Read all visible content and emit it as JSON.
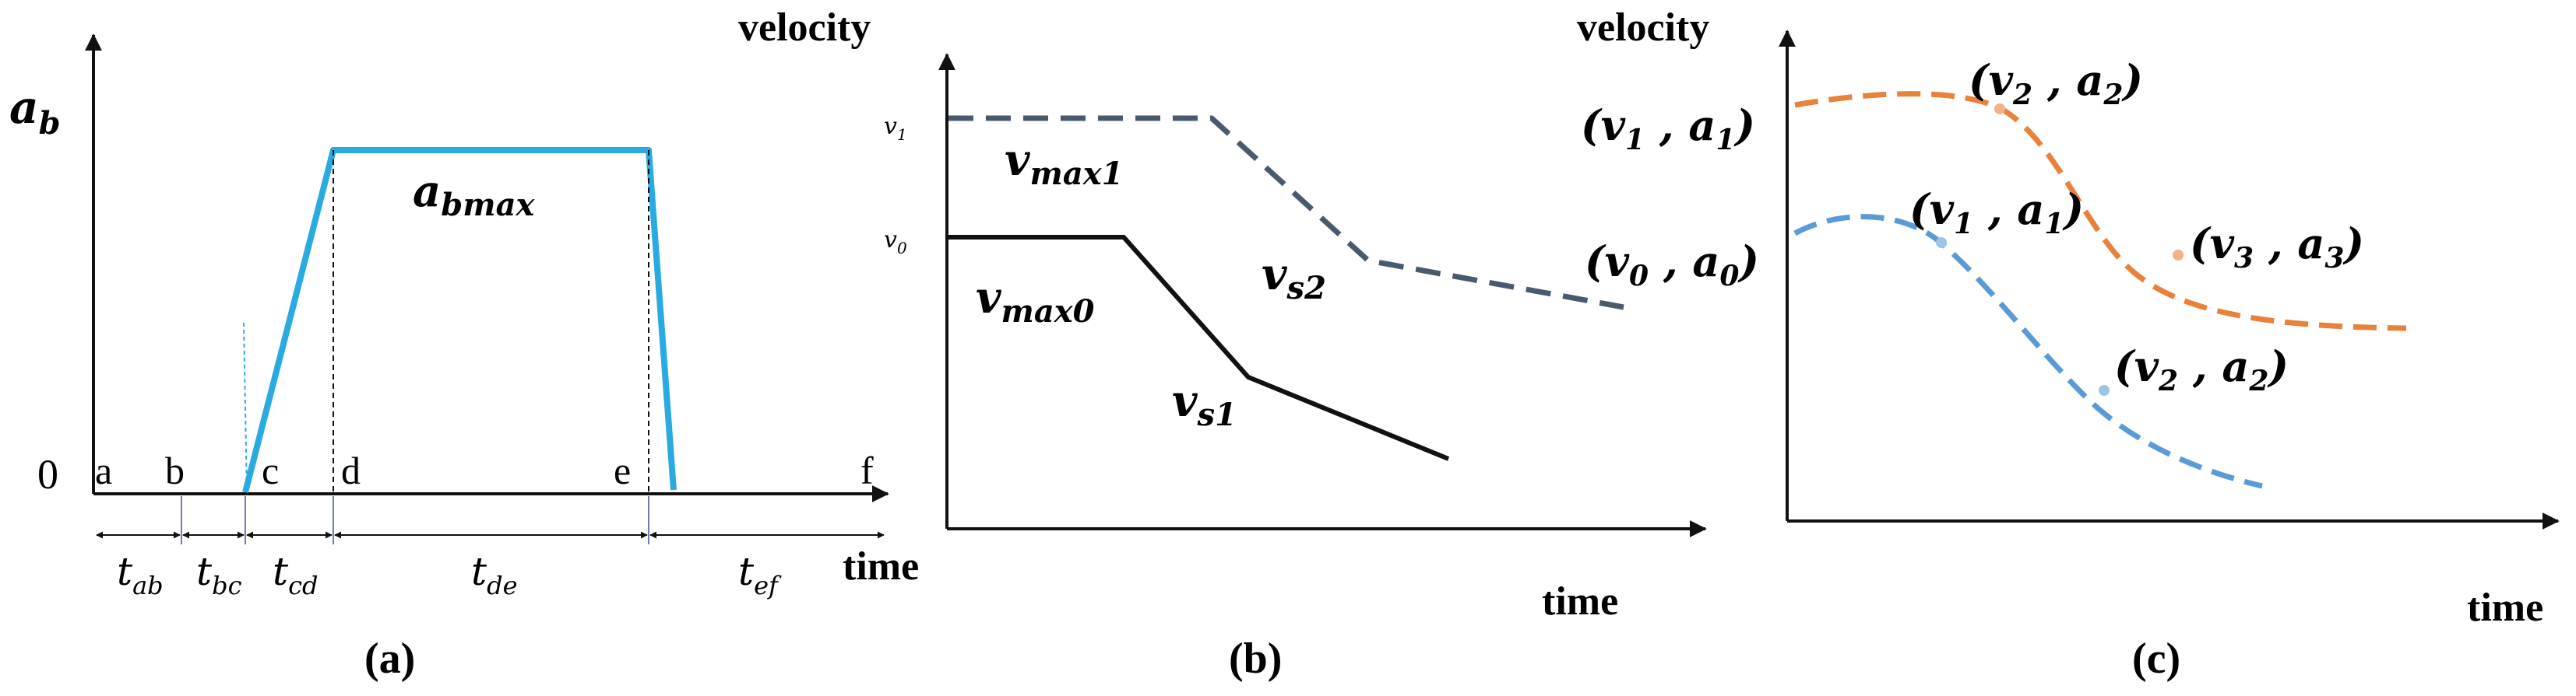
{
  "colors": {
    "axis": "#111111",
    "blue": "#29abe2",
    "slate": "#4a5a6e",
    "black": "#111111",
    "orange": "#e8823a",
    "lightblue": "#5b9bd5",
    "pointer": "#6f7ea6"
  },
  "panel_a": {
    "y_axis_label": "a",
    "y_axis_label_sub": "b",
    "x_axis_label": "time",
    "origin_label": "0",
    "plateau_label": "a",
    "plateau_label_sub": "bmax",
    "points": [
      "a",
      "b",
      "c",
      "d",
      "e",
      "f"
    ],
    "intervals": [
      {
        "label": "t",
        "sub": "ab"
      },
      {
        "label": "t",
        "sub": "bc"
      },
      {
        "label": "t",
        "sub": "cd"
      },
      {
        "label": "t",
        "sub": "de"
      },
      {
        "label": "t",
        "sub": "ef"
      }
    ],
    "caption": "(a)"
  },
  "panel_b": {
    "y_axis_label": "velocity",
    "x_axis_label": "time",
    "tick_v1": "v",
    "tick_v1_sub": "1",
    "tick_v0": "v",
    "tick_v0_sub": "0",
    "vmax1": "v",
    "vmax1_sub": "max1",
    "vmax0": "v",
    "vmax0_sub": "max0",
    "vs2": "v",
    "vs2_sub": "s2",
    "vs1": "v",
    "vs1_sub": "s1",
    "caption": "(b)"
  },
  "panel_c": {
    "y_axis_label": "velocity",
    "x_axis_label": "time",
    "orange_points": [
      {
        "v": "1",
        "a": "1"
      },
      {
        "v": "2",
        "a": "2"
      },
      {
        "v": "3",
        "a": "3"
      }
    ],
    "blue_points": [
      {
        "v": "0",
        "a": "0"
      },
      {
        "v": "1",
        "a": "1"
      },
      {
        "v": "2",
        "a": "2"
      }
    ],
    "caption": "(c)"
  }
}
